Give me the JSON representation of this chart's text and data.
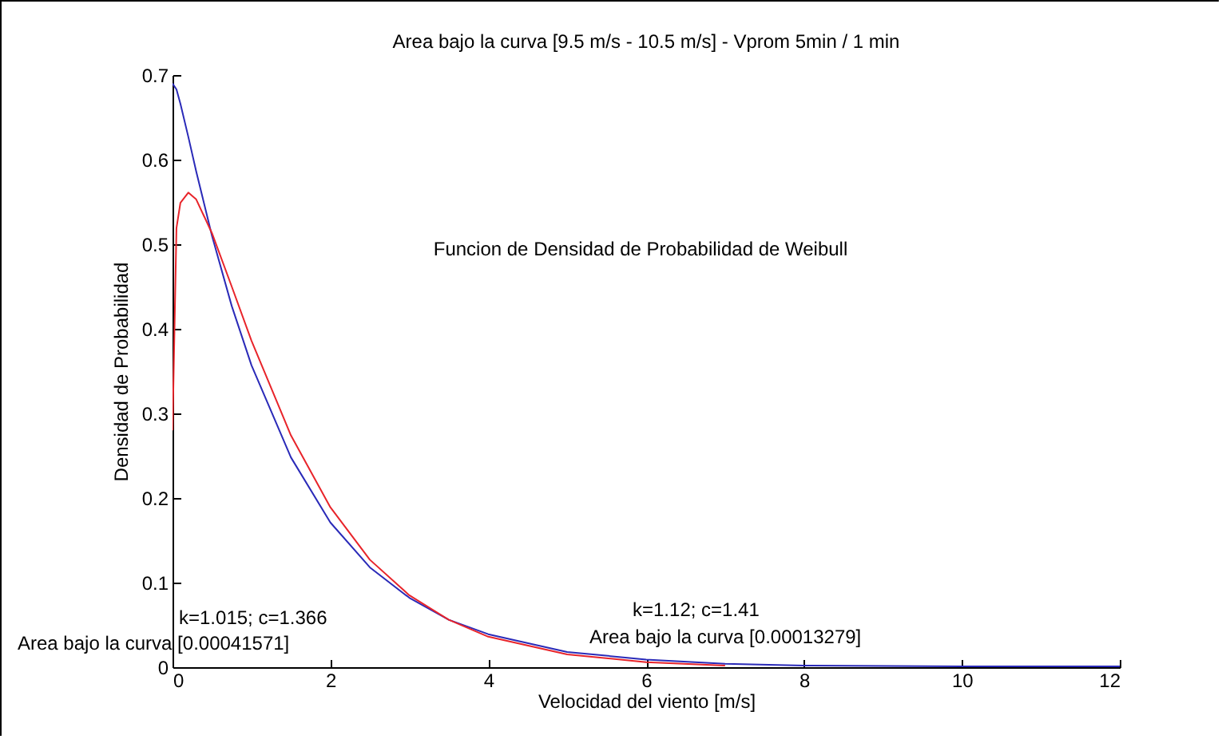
{
  "chart_data": {
    "type": "line",
    "title": "Area bajo la curva [9.5 m/s - 10.5 m/s] - Vprom 5min / 1 min",
    "xlabel": "Velocidad del viento [m/s]",
    "ylabel": "Densidad de Probabilidad",
    "x": [
      0,
      0.05,
      0.1,
      0.2,
      0.3,
      0.5,
      0.75,
      1,
      1.5,
      2,
      2.5,
      3,
      3.5,
      4,
      5,
      6,
      7,
      8,
      10,
      12
    ],
    "series": [
      {
        "color": "#2a2ab8",
        "values": [
          0.69,
          0.683,
          0.666,
          0.627,
          0.586,
          0.51,
          0.427,
          0.357,
          0.248,
          0.171,
          0.118,
          0.082,
          0.056,
          0.039,
          0.018,
          0.009,
          0.004,
          0.002,
          0.001,
          0.001
        ]
      },
      {
        "color": "#e8242a",
        "values": [
          0.28,
          0.519,
          0.549,
          0.561,
          0.553,
          0.513,
          0.45,
          0.386,
          0.274,
          0.189,
          0.127,
          0.085,
          0.056,
          0.036,
          0.015,
          0.006,
          0.002,
          null,
          null,
          null
        ]
      }
    ],
    "xlim": [
      0,
      12
    ],
    "xticks": [
      0,
      2,
      4,
      6,
      8,
      10,
      12
    ],
    "ylim": [
      0,
      0.7
    ],
    "yticks": [
      0,
      0.1,
      0.2,
      0.3,
      0.4,
      0.5,
      0.6,
      0.7
    ],
    "grid": false,
    "legend": false,
    "marker": "none",
    "line_style": "solid",
    "annotations": [
      "Funcion de Densidad de Probabilidad de Weibull",
      "k=1.015; c=1.366",
      "Area bajo la curva [0.00041571]",
      "k=1.12; c=1.41",
      "Area bajo la curva [0.00013279]"
    ]
  }
}
